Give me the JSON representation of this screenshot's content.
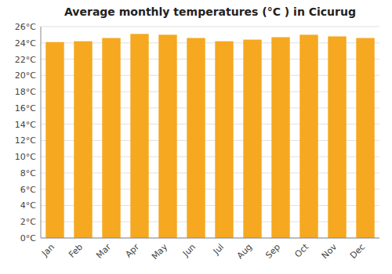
{
  "chart_data": {
    "type": "bar",
    "title": "Average monthly temperatures (°C ) in Cicurug",
    "categories": [
      "Jan",
      "Feb",
      "Mar",
      "Apr",
      "May",
      "Jun",
      "Jul",
      "Aug",
      "Sep",
      "Oct",
      "Nov",
      "Dec"
    ],
    "values": [
      24.1,
      24.2,
      24.6,
      25.1,
      25.0,
      24.6,
      24.2,
      24.4,
      24.7,
      25.0,
      24.8,
      24.6
    ],
    "color": "#F5A820",
    "ylim": [
      0,
      26
    ],
    "yticks": [
      {
        "value": 0,
        "label": "0°C"
      },
      {
        "value": 2,
        "label": "2°C"
      },
      {
        "value": 4,
        "label": "4°C"
      },
      {
        "value": 6,
        "label": "6°C"
      },
      {
        "value": 8,
        "label": "8°C"
      },
      {
        "value": 10,
        "label": "10°C"
      },
      {
        "value": 12,
        "label": "12°C"
      },
      {
        "value": 14,
        "label": "14°C"
      },
      {
        "value": 16,
        "label": "16°C"
      },
      {
        "value": 18,
        "label": "18°C"
      },
      {
        "value": 20,
        "label": "20°C"
      },
      {
        "value": 22,
        "label": "22°C"
      },
      {
        "value": 24,
        "label": "24°C"
      },
      {
        "value": 26,
        "label": "26°C"
      }
    ],
    "grid": true
  }
}
